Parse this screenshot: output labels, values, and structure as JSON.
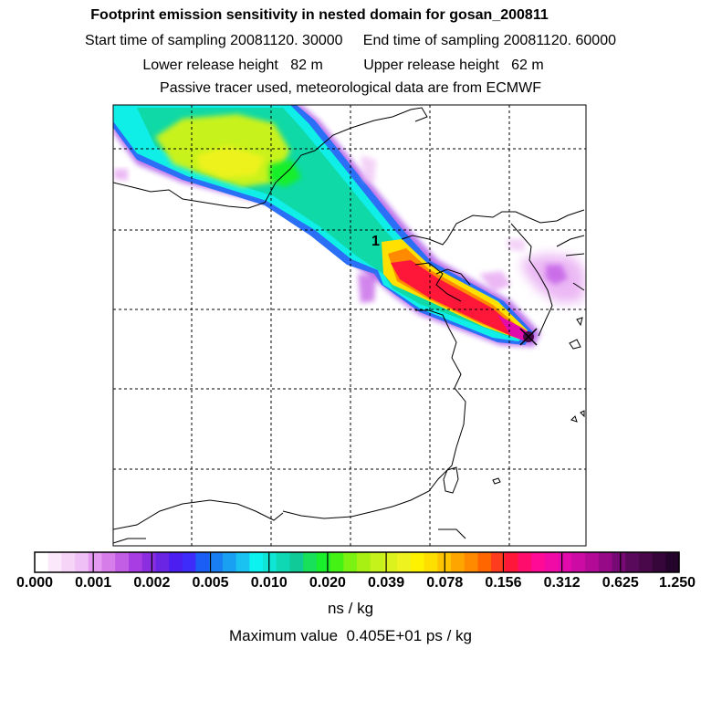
{
  "title": "Footprint emission sensitivity in nested domain for gosan_200811",
  "sampling_line": "Start time of sampling 20081120. 30000     End time of sampling 20081120. 60000",
  "height_line": "Lower release height   82 m          Upper release height   62 m",
  "tracer_line": "Passive tracer used, meteorological data are from ECMWF",
  "release_marker": "1",
  "colorbar": {
    "ticks": [
      "0.000",
      "0.001",
      "0.002",
      "0.005",
      "0.010",
      "0.020",
      "0.039",
      "0.078",
      "0.156",
      "0.312",
      "0.625",
      "1.250"
    ],
    "colors": [
      "#ffffff",
      "#fbe9fb",
      "#f6d4f8",
      "#efc0f5",
      "#e39af0",
      "#d67de9",
      "#c25de6",
      "#a83de3",
      "#8a2ee0",
      "#6a24e4",
      "#4c1ef0",
      "#3e2dfa",
      "#1b5ef5",
      "#1a7ef3",
      "#1aa0f2",
      "#19c2f0",
      "#0bf2f0",
      "#0fe6d6",
      "#0fd8b4",
      "#10ca98",
      "#18e05a",
      "#19ef2a",
      "#44f214",
      "#7cf212",
      "#a8f014",
      "#c6f21b",
      "#dcf21e",
      "#eef21e",
      "#fff200",
      "#ffdf00",
      "#ffc400",
      "#ffa500",
      "#ff8a00",
      "#ff6600",
      "#ff3c1e",
      "#ff1739",
      "#ff0d6c",
      "#ff0a96",
      "#f00aa6",
      "#e20aaa",
      "#cc0aa4",
      "#b40a98",
      "#960a88",
      "#780a76",
      "#5a0a5a",
      "#48084a",
      "#36063a",
      "#24042a"
    ],
    "unit": "ns / kg"
  },
  "max_value_line": "Maximum value  0.405E+01 ps / kg"
}
